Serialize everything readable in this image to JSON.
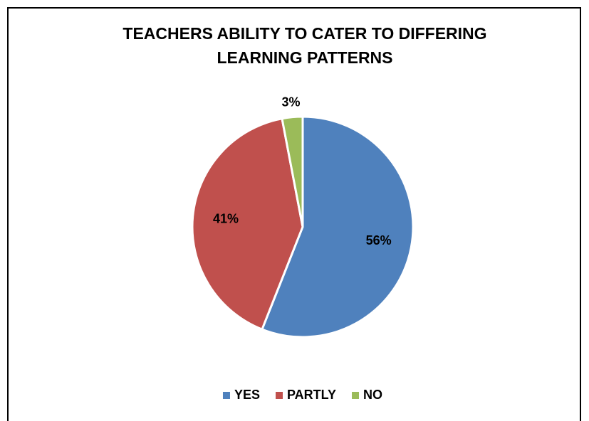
{
  "chart_data": {
    "type": "pie",
    "title": "TEACHERS ABILITY TO CATER TO DIFFERING LEARNING PATTERNS",
    "categories": [
      "YES",
      "PARTLY",
      "NO"
    ],
    "values": [
      56,
      41,
      3
    ],
    "value_labels": [
      "56%",
      "41%",
      "3%"
    ],
    "colors": [
      "#4f81bd",
      "#c0504d",
      "#9bbb59"
    ],
    "legend": "bottom"
  }
}
